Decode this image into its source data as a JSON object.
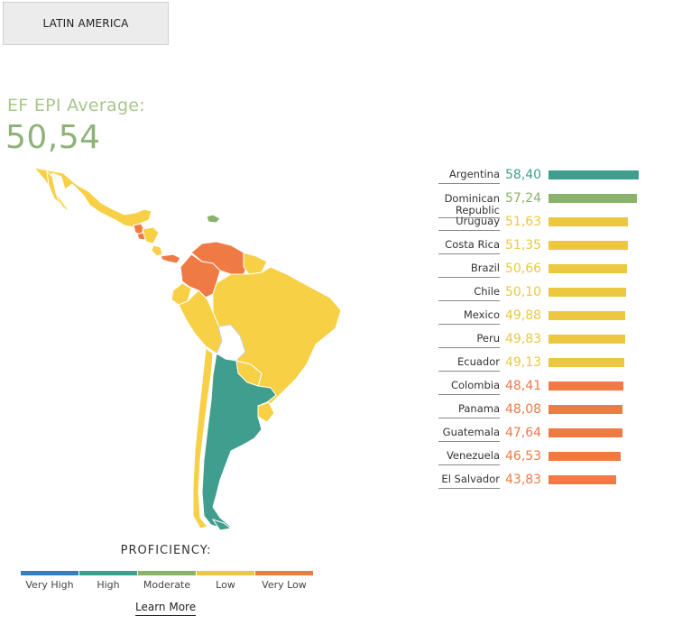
{
  "region_tab": {
    "label": "LATIN AMERICA"
  },
  "average": {
    "label": "EF EPI Average:",
    "value": "50,54"
  },
  "legend": {
    "title": "PROFICIENCY:",
    "items": [
      {
        "label": "Very High",
        "color": "#3b7db8"
      },
      {
        "label": "High",
        "color": "#3f9e8e"
      },
      {
        "label": "Moderate",
        "color": "#8bb26a"
      },
      {
        "label": "Low",
        "color": "#ecc840"
      },
      {
        "label": "Very Low",
        "color": "#f07a44"
      }
    ]
  },
  "learn_more": "Learn More",
  "chart_data": {
    "type": "bar",
    "orientation": "horizontal",
    "categories": [
      "Argentina",
      "Dominican Republic",
      "Uruguay",
      "Costa Rica",
      "Brazil",
      "Chile",
      "Mexico",
      "Peru",
      "Ecuador",
      "Colombia",
      "Panama",
      "Guatemala",
      "Venezuela",
      "El Salvador"
    ],
    "labels": [
      "58,40",
      "57,24",
      "51,63",
      "51,35",
      "50,66",
      "50,10",
      "49,88",
      "49,83",
      "49,13",
      "48,41",
      "48,08",
      "47,64",
      "46,53",
      "43,83"
    ],
    "values": [
      58.4,
      57.24,
      51.63,
      51.35,
      50.66,
      50.1,
      49.88,
      49.83,
      49.13,
      48.41,
      48.08,
      47.64,
      46.53,
      43.83
    ],
    "proficiency": [
      "High",
      "Moderate",
      "Low",
      "Low",
      "Low",
      "Low",
      "Low",
      "Low",
      "Low",
      "Very Low",
      "Very Low",
      "Very Low",
      "Very Low",
      "Very Low"
    ]
  }
}
